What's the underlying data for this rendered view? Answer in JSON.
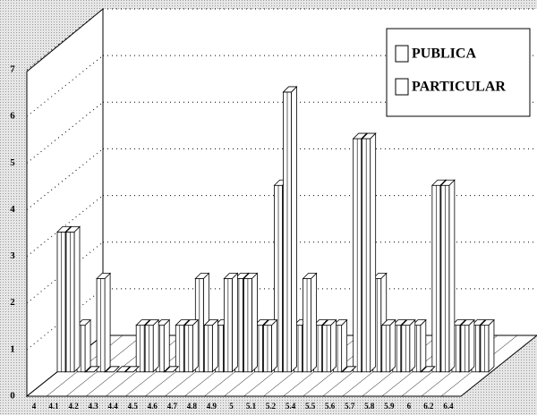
{
  "chart_data": {
    "type": "bar3d",
    "categories": [
      "4",
      "4.1",
      "4.2",
      "4.3",
      "4.4",
      "4.5",
      "4.6",
      "4.7",
      "4.8",
      "4.9",
      "5",
      "5.1",
      "5.2",
      "5.4",
      "5.5",
      "5.6",
      "5.7",
      "5.8",
      "5.9",
      "6",
      "6.2",
      "6.4"
    ],
    "series": [
      {
        "name": "PUBLICA",
        "color": "#ffffff",
        "values": [
          3,
          1,
          2,
          0,
          1,
          1,
          1,
          2,
          1,
          2,
          1,
          4,
          1,
          1,
          1,
          5,
          2,
          1,
          1,
          4,
          1,
          1
        ]
      },
      {
        "name": "PARTICULAR",
        "color": "#ffffff",
        "values": [
          3,
          0,
          0,
          0,
          1,
          0,
          1,
          1,
          2,
          2,
          1,
          6,
          2,
          1,
          0,
          5,
          1,
          1,
          0,
          4,
          1,
          1
        ]
      }
    ],
    "ylim": [
      0,
      7
    ],
    "yticks": [
      0,
      1,
      2,
      3,
      4,
      5,
      6,
      7
    ],
    "grid": true,
    "legend": "top-right"
  }
}
